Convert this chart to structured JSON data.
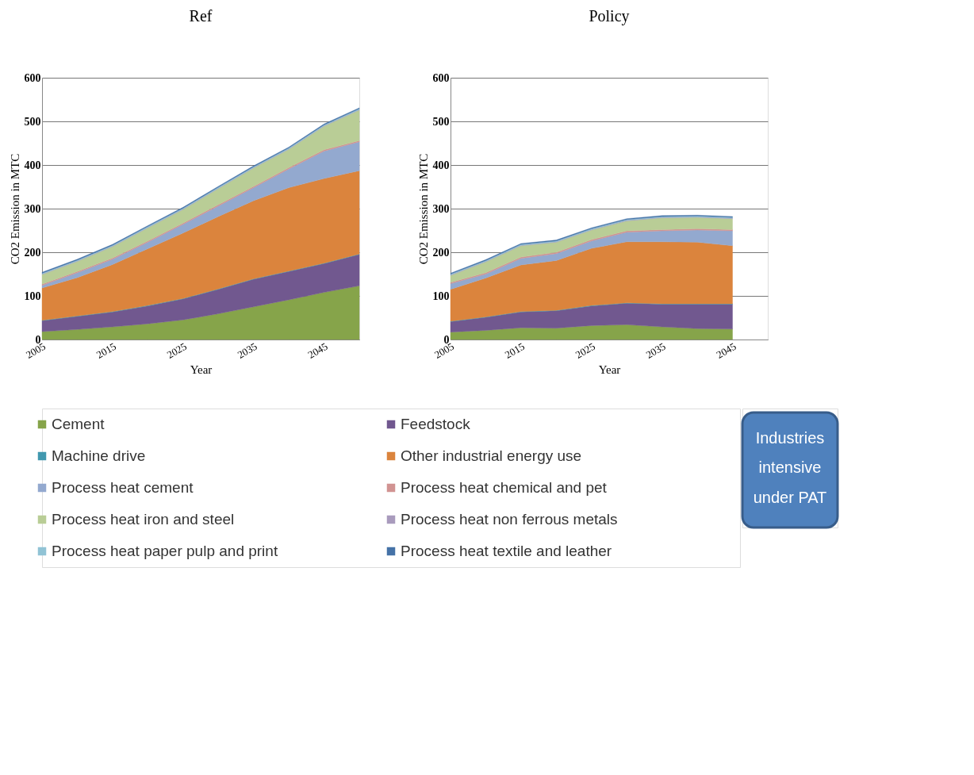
{
  "chart_data": [
    {
      "type": "area",
      "title": "Ref",
      "xlabel": "Year",
      "ylabel": "CO2 Emission in MTC",
      "stacked": true,
      "legend": "bottom",
      "grid": "y",
      "x": [
        2005,
        2010,
        2015,
        2020,
        2025,
        2030,
        2035,
        2040,
        2045,
        2050
      ],
      "xlim": [
        2005,
        2050
      ],
      "xticks": [
        2005,
        2015,
        2025,
        2035,
        2045
      ],
      "ylim": [
        0,
        600
      ],
      "yticks": [
        0,
        100,
        200,
        300,
        400,
        500,
        600
      ],
      "series": [
        {
          "name": "Cement",
          "color": "#86a44a",
          "values": [
            18,
            23,
            29,
            36,
            45,
            59,
            75,
            91,
            108,
            123
          ]
        },
        {
          "name": "Feedstock",
          "color": "#71588f",
          "values": [
            25,
            30,
            34,
            41,
            48,
            56,
            63,
            65,
            66,
            72
          ]
        },
        {
          "name": "Machine drive",
          "color": "#4198af",
          "values": [
            1,
            1,
            1,
            1,
            1,
            1,
            1,
            1,
            1,
            1
          ]
        },
        {
          "name": "Other industrial energy use",
          "color": "#db843d",
          "values": [
            74,
            88,
            108,
            130,
            150,
            166,
            179,
            191,
            194,
            191
          ]
        },
        {
          "name": "Process heat cement",
          "color": "#93a9cf",
          "values": [
            6,
            11,
            12,
            15,
            20,
            24,
            30,
            43,
            63,
            66
          ]
        },
        {
          "name": "Process heat chemical and pet",
          "color": "#d19392",
          "values": [
            3,
            3,
            3,
            3,
            3,
            3,
            3,
            3,
            3,
            3
          ]
        },
        {
          "name": "Process heat iron and steel",
          "color": "#b9cd96",
          "values": [
            22,
            23,
            26,
            30,
            31,
            37,
            42,
            42,
            54,
            70
          ]
        },
        {
          "name": "Process heat non ferrous metals",
          "color": "#a99bbd",
          "values": [
            1,
            1,
            1,
            1,
            1,
            1,
            1,
            1,
            1,
            1
          ]
        },
        {
          "name": "Process heat paper pulp and print",
          "color": "#91c3d5",
          "values": [
            2,
            2,
            2,
            2,
            2,
            2,
            2,
            2,
            2,
            2
          ]
        },
        {
          "name": "Process heat textile and leather",
          "color": "#4572a7",
          "values": [
            2,
            2,
            2,
            2,
            2,
            2,
            2,
            2,
            2,
            2
          ]
        }
      ]
    },
    {
      "type": "area",
      "title": "Policy",
      "xlabel": "Year",
      "ylabel": "CO2 Emission in MTC",
      "stacked": true,
      "legend": "bottom",
      "grid": "y",
      "x": [
        2005,
        2010,
        2015,
        2020,
        2025,
        2030,
        2035,
        2040,
        2045
      ],
      "xlim": [
        2005,
        2050
      ],
      "xticks": [
        2005,
        2015,
        2025,
        2035,
        2045
      ],
      "ylim": [
        0,
        600
      ],
      "yticks": [
        0,
        100,
        200,
        300,
        400,
        500,
        600
      ],
      "annotations": [
        "Industries",
        "intensive",
        "under PAT"
      ],
      "series": [
        {
          "name": "Cement",
          "color": "#86a44a",
          "values": [
            17,
            21,
            27,
            26,
            32,
            34,
            29,
            25,
            24
          ]
        },
        {
          "name": "Feedstock",
          "color": "#71588f",
          "values": [
            24,
            30,
            36,
            40,
            45,
            49,
            52,
            56,
            57
          ]
        },
        {
          "name": "Machine drive",
          "color": "#4198af",
          "values": [
            1,
            1,
            1,
            1,
            1,
            1,
            1,
            1,
            1
          ]
        },
        {
          "name": "Other industrial energy use",
          "color": "#db843d",
          "values": [
            73,
            89,
            107,
            114,
            131,
            140,
            142,
            141,
            133
          ]
        },
        {
          "name": "Process heat cement",
          "color": "#93a9cf",
          "values": [
            13,
            9,
            15,
            16,
            17,
            22,
            25,
            28,
            34
          ]
        },
        {
          "name": "Process heat chemical and pet",
          "color": "#d19392",
          "values": [
            3,
            3,
            3,
            3,
            3,
            3,
            3,
            3,
            3
          ]
        },
        {
          "name": "Process heat iron and steel",
          "color": "#b9cd96",
          "values": [
            16,
            25,
            26,
            23,
            22,
            23,
            27,
            26,
            25
          ]
        },
        {
          "name": "Process heat non ferrous metals",
          "color": "#a99bbd",
          "values": [
            1,
            1,
            1,
            1,
            1,
            1,
            1,
            1,
            1
          ]
        },
        {
          "name": "Process heat paper pulp and print",
          "color": "#91c3d5",
          "values": [
            2,
            2,
            2,
            2,
            2,
            2,
            2,
            2,
            2
          ]
        },
        {
          "name": "Process heat textile and leather",
          "color": "#4572a7",
          "values": [
            2,
            2,
            2,
            2,
            2,
            2,
            2,
            2,
            2
          ]
        }
      ]
    }
  ]
}
